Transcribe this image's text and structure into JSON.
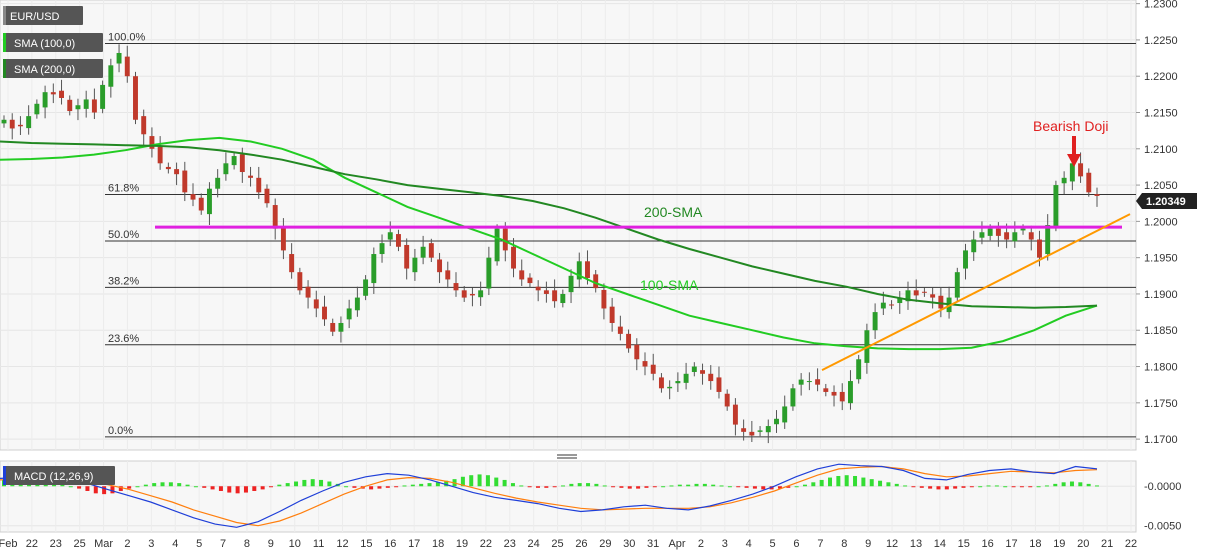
{
  "chart_data": [
    {
      "type": "candlestick",
      "title": "EUR/USD",
      "legend": [
        "SMA (100,0)",
        "SMA (200,0)"
      ],
      "y_axis": {
        "range": [
          1.1685,
          1.2305
        ],
        "ticks": [
          "1.2300",
          "1.2250",
          "1.2200",
          "1.2150",
          "1.2100",
          "1.2050",
          "1.2000",
          "1.1950",
          "1.1900",
          "1.1850",
          "1.1800",
          "1.1750",
          "1.1700"
        ]
      },
      "x_axis": {
        "ticks": [
          "Feb",
          "22",
          "23",
          "25",
          "Mar",
          "2",
          "3",
          "4",
          "5",
          "7",
          "8",
          "9",
          "10",
          "11",
          "12",
          "15",
          "16",
          "17",
          "18",
          "19",
          "22",
          "23",
          "24",
          "25",
          "26",
          "29",
          "30",
          "31",
          "Apr",
          "2",
          "3",
          "4",
          "5",
          "6",
          "7",
          "8",
          "9",
          "12",
          "13",
          "14",
          "15",
          "16",
          "17",
          "18",
          "19",
          "20",
          "21",
          "22"
        ]
      },
      "current_price": "1.20349",
      "fibonacci_levels": [
        {
          "label": "100.0%",
          "value": 1.2245
        },
        {
          "label": "61.8%",
          "value": 1.2037
        },
        {
          "label": "50.0%",
          "value": 1.1973
        },
        {
          "label": "38.2%",
          "value": 1.1909
        },
        {
          "label": "23.6%",
          "value": 1.183
        },
        {
          "label": "0.0%",
          "value": 1.1703
        }
      ],
      "resistance_line": {
        "value": 1.1992,
        "color": "#e020e0"
      },
      "trendline": {
        "from_date": "Apr 5",
        "from_value": 1.1795,
        "to_date": "Apr 22",
        "to_value": 1.201,
        "color": "#ff9900"
      },
      "close_series": [
        1.214,
        1.2128,
        1.2131,
        1.2145,
        1.2162,
        1.2178,
        1.2175,
        1.217,
        1.2152,
        1.216,
        1.2168,
        1.215,
        1.2188,
        1.2215,
        1.2232,
        1.22,
        1.214,
        1.212,
        1.21,
        1.208,
        1.2072,
        1.2065,
        1.204,
        1.203,
        1.2015,
        1.2045,
        1.206,
        1.208,
        1.209,
        1.2068,
        1.206,
        1.204,
        1.2025,
        1.199,
        1.196,
        1.193,
        1.1905,
        1.1895,
        1.188,
        1.1865,
        1.1848,
        1.186,
        1.188,
        1.1895,
        1.192,
        1.1955,
        1.197,
        1.1985,
        1.1965,
        1.1935,
        1.195,
        1.1965,
        1.195,
        1.193,
        1.192,
        1.1905,
        1.1895,
        1.1898,
        1.1905,
        1.195,
        1.199,
        1.196,
        1.1935,
        1.192,
        1.1915,
        1.1905,
        1.19,
        1.189,
        1.19,
        1.1925,
        1.1945,
        1.1922,
        1.1908,
        1.188,
        1.186,
        1.1845,
        1.1825,
        1.181,
        1.18,
        1.179,
        1.177,
        1.1772,
        1.178,
        1.179,
        1.18,
        1.179,
        1.178,
        1.1765,
        1.1745,
        1.172,
        1.171,
        1.1705,
        1.1712,
        1.1718,
        1.1728,
        1.1745,
        1.177,
        1.1782,
        1.178,
        1.1775,
        1.1765,
        1.176,
        1.1752,
        1.178,
        1.181,
        1.185,
        1.1875,
        1.1888,
        1.1885,
        1.1895,
        1.1905,
        1.1898,
        1.1902,
        1.1895,
        1.188,
        1.1895,
        1.193,
        1.196,
        1.1975,
        1.1985,
        1.199,
        1.198,
        1.1975,
        1.1985,
        1.199,
        1.1975,
        1.195,
        1.1995,
        1.205,
        1.206,
        1.208,
        1.2062,
        1.204,
        1.2035
      ],
      "sma_100": {
        "label": "100-SMA",
        "color": "#22cc22",
        "values": [
          1.2085,
          1.2086,
          1.2088,
          1.2092,
          1.2098,
          1.2106,
          1.2112,
          1.2115,
          1.211,
          1.21,
          1.2085,
          1.206,
          1.204,
          1.202,
          1.2005,
          1.199,
          1.1975,
          1.1955,
          1.1935,
          1.1915,
          1.19,
          1.1885,
          1.187,
          1.186,
          1.185,
          1.184,
          1.1832,
          1.1828,
          1.1825,
          1.1824,
          1.1824,
          1.1826,
          1.1835,
          1.185,
          1.187,
          1.1884
        ]
      },
      "sma_200": {
        "label": "200-SMA",
        "color": "#228822",
        "values": [
          1.211,
          1.2108,
          1.2107,
          1.2106,
          1.2105,
          1.2104,
          1.2102,
          1.2098,
          1.2092,
          1.2085,
          1.2075,
          1.2065,
          1.2058,
          1.205,
          1.2045,
          1.204,
          1.2035,
          1.2028,
          1.2018,
          1.2005,
          1.199,
          1.1975,
          1.1962,
          1.195,
          1.1938,
          1.1928,
          1.1918,
          1.191,
          1.19,
          1.1892,
          1.1887,
          1.1883,
          1.1882,
          1.1881,
          1.1882,
          1.1884
        ]
      },
      "annotation": {
        "text": "Bearish Doji",
        "color": "#e02020"
      }
    },
    {
      "type": "bar",
      "title": "MACD (12,26,9)",
      "y_axis": {
        "range": [
          -0.0058,
          0.0032
        ],
        "ticks": [
          "-0.0000",
          "-0.0050"
        ]
      },
      "histogram": [
        0.0008,
        0.0009,
        0.0009,
        0.0008,
        0.0007,
        0.0007,
        0.0005,
        0.0002,
        0.0,
        -0.0003,
        -0.0006,
        -0.0009,
        -0.001,
        -0.0009,
        -0.0006,
        -0.0003,
        0.0,
        0.0002,
        0.0004,
        0.0005,
        0.0005,
        0.0004,
        0.0002,
        0.0,
        -0.0002,
        -0.0004,
        -0.0006,
        -0.0008,
        -0.0009,
        -0.0008,
        -0.0006,
        -0.0004,
        -0.0001,
        0.0002,
        0.0004,
        0.0006,
        0.0008,
        0.0009,
        0.0008,
        0.0006,
        0.0003,
        0.0,
        -0.0002,
        -0.0003,
        -0.0004,
        -0.0003,
        -0.0002,
        -0.0001,
        0.0001,
        0.0002,
        0.0003,
        0.0004,
        0.0005,
        0.0007,
        0.0009,
        0.0012,
        0.0014,
        0.0015,
        0.0014,
        0.0011,
        0.0008,
        0.0004,
        0.0001,
        -0.0001,
        -0.0002,
        -0.0002,
        -0.0001,
        0.0001,
        0.0003,
        0.0004,
        0.0004,
        0.0003,
        0.0001,
        -0.0001,
        -0.0002,
        -0.0003,
        -0.0003,
        -0.0002,
        -0.0001,
        0.0,
        0.0001,
        0.0002,
        0.0002,
        0.0003,
        0.0003,
        0.0002,
        0.0001,
        0.0,
        -0.0001,
        -0.0002,
        -0.0003,
        -0.0004,
        -0.0004,
        -0.0003,
        -0.0002,
        0.0,
        0.0002,
        0.0005,
        0.0008,
        0.0011,
        0.0013,
        0.0014,
        0.0013,
        0.0011,
        0.0009,
        0.0007,
        0.0005,
        0.0003,
        0.0001,
        -0.0001,
        -0.0002,
        -0.0003,
        -0.0004,
        -0.0004,
        -0.0003,
        -0.0002,
        -0.0001,
        0.0,
        0.0001,
        0.0001,
        0.0,
        -0.0001,
        -0.0001,
        -0.0001,
        0.0,
        0.0001,
        0.0003,
        0.0005,
        0.0006,
        0.0005,
        0.0003,
        0.0001
      ],
      "macd_line": {
        "color": "#1f3fd8",
        "values": [
          0.001,
          0.0011,
          0.001,
          0.0008,
          0.0004,
          -0.0004,
          -0.0012,
          -0.002,
          -0.003,
          -0.004,
          -0.0048,
          -0.0052,
          -0.0045,
          -0.0032,
          -0.0018,
          -0.0006,
          0.0005,
          0.0012,
          0.0016,
          0.0014,
          0.0008,
          0.0,
          -0.0008,
          -0.0014,
          -0.0018,
          -0.0022,
          -0.0028,
          -0.0032,
          -0.003,
          -0.0026,
          -0.0024,
          -0.0028,
          -0.003,
          -0.0025,
          -0.0018,
          -0.001,
          0.0,
          0.0012,
          0.0022,
          0.0028,
          0.0026,
          0.0025,
          0.002,
          0.001,
          0.0008,
          0.0015,
          0.002,
          0.0022,
          0.0018,
          0.0016,
          0.0025,
          0.0022
        ]
      },
      "signal_line": {
        "color": "#ff7f0e",
        "values": [
          0.0008,
          0.0009,
          0.0009,
          0.0008,
          0.0006,
          0.0002,
          -0.0004,
          -0.0012,
          -0.002,
          -0.003,
          -0.0038,
          -0.0046,
          -0.005,
          -0.0044,
          -0.0034,
          -0.0022,
          -0.001,
          0.0,
          0.0008,
          0.0011,
          0.001,
          0.0005,
          -0.0002,
          -0.0009,
          -0.0015,
          -0.002,
          -0.0024,
          -0.0028,
          -0.003,
          -0.0029,
          -0.0028,
          -0.0028,
          -0.0028,
          -0.0026,
          -0.0021,
          -0.0014,
          -0.0006,
          0.0004,
          0.0014,
          0.0022,
          0.0024,
          0.0025,
          0.0022,
          0.0016,
          0.0012,
          0.0013,
          0.0016,
          0.0019,
          0.0018,
          0.0017,
          0.002,
          0.0021
        ]
      }
    }
  ]
}
